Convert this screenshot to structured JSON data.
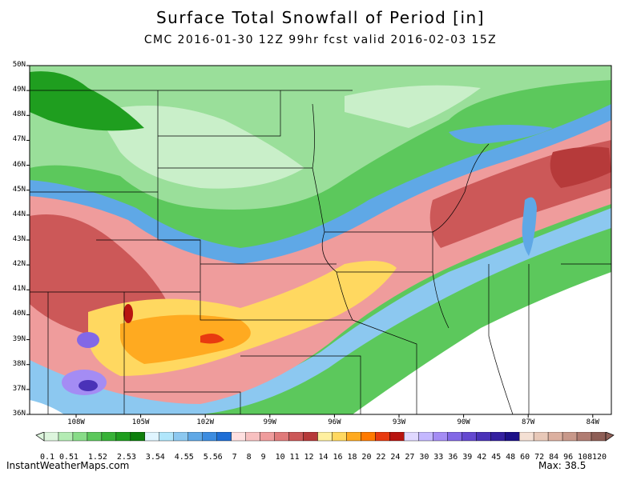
{
  "title": "Surface Total Snowfall of Period [in]",
  "subtitle": "CMC 2016-01-30 12Z 99hr fcst valid 2016-02-03 15Z",
  "lat_labels": [
    "50N",
    "49N",
    "48N",
    "47N",
    "46N",
    "45N",
    "44N",
    "43N",
    "42N",
    "41N",
    "40N",
    "39N",
    "38N",
    "37N",
    "36N"
  ],
  "lon_labels": [
    "108W",
    "105W",
    "102W",
    "99W",
    "96W",
    "93W",
    "90W",
    "87W",
    "84W"
  ],
  "colorbar": {
    "labels": [
      "0.1",
      "0.5",
      "1",
      "1.5",
      "2",
      "2.5",
      "3",
      "3.5",
      "4",
      "4.5",
      "5",
      "5.5",
      "6",
      "7",
      "8",
      "9",
      "10",
      "11",
      "12",
      "14",
      "16",
      "18",
      "20",
      "22",
      "24",
      "27",
      "30",
      "33",
      "36",
      "39",
      "42",
      "45",
      "48",
      "60",
      "72",
      "84",
      "96",
      "108",
      "120"
    ],
    "colors": [
      "#ddf5dd",
      "#b4ecb4",
      "#88dc88",
      "#5cc85c",
      "#37b237",
      "#1f9e1f",
      "#0d7f0d",
      "#e0f5ff",
      "#b0e6fb",
      "#8cc8f0",
      "#5fa8e6",
      "#3c8ce0",
      "#1e6ed6",
      "#ffe0e0",
      "#f8c0c0",
      "#ef9c9c",
      "#e07a7a",
      "#cc5858",
      "#b63a3a",
      "#fff0a0",
      "#ffd860",
      "#ffaa20",
      "#ff7a00",
      "#e83a10",
      "#b81410",
      "#e0d8ff",
      "#c4b8ff",
      "#a48cf4",
      "#8268e6",
      "#6448d0",
      "#4a32b8",
      "#3420a0",
      "#1c1088",
      "#f4e0d4",
      "#e8c8b8",
      "#dcb0a0",
      "#c8988a",
      "#b07c72",
      "#8e5e56"
    ]
  },
  "brand": "InstantWeatherMaps.com",
  "max_text": "Max: 38.5"
}
